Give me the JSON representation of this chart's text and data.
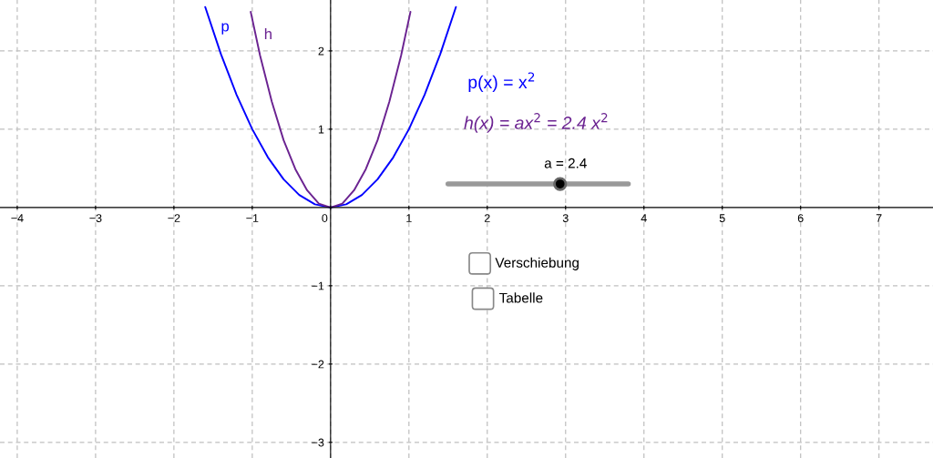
{
  "chart_data": {
    "type": "line",
    "series": [
      {
        "name": "p",
        "color": "#0000ff",
        "x": [
          -1.6,
          -1.4,
          -1.2,
          -1.0,
          -0.8,
          -0.6,
          -0.4,
          -0.2,
          0,
          0.2,
          0.4,
          0.6,
          0.8,
          1.0,
          1.2,
          1.4,
          1.6
        ],
        "values": [
          2.56,
          1.96,
          1.44,
          1.0,
          0.64,
          0.36,
          0.16,
          0.04,
          0,
          0.04,
          0.16,
          0.36,
          0.64,
          1.0,
          1.44,
          1.96,
          2.56
        ]
      },
      {
        "name": "h",
        "color": "#6b2391",
        "x": [
          -1.02,
          -0.9,
          -0.75,
          -0.6,
          -0.45,
          -0.3,
          -0.15,
          0,
          0.15,
          0.3,
          0.45,
          0.6,
          0.75,
          0.9,
          1.02
        ],
        "values": [
          2.5,
          1.94,
          1.35,
          0.86,
          0.49,
          0.22,
          0.05,
          0,
          0.05,
          0.22,
          0.49,
          0.86,
          1.35,
          1.94,
          2.5
        ]
      }
    ],
    "annotations": [
      "p(x) = x$^{2}$",
      "h(x) = ax$^{2}$ = 2.4 x$^{2}$",
      "a = 2.4",
      "Verschiebung",
      "Tabelle"
    ],
    "xlim": [
      -4.22,
      7.69
    ],
    "ylim": [
      -3.2,
      2.65
    ],
    "xticks": [
      {
        "value": -4,
        "label": "−4"
      },
      {
        "value": -3,
        "label": "−3"
      },
      {
        "value": -2,
        "label": "−2"
      },
      {
        "value": -1,
        "label": "−1"
      },
      0,
      1,
      2,
      3,
      4,
      5,
      6,
      7
    ],
    "yticks": [
      {
        "value": -3,
        "label": "−3"
      },
      {
        "value": -2,
        "label": "−2"
      },
      {
        "value": -1,
        "label": "−1"
      },
      1,
      2
    ],
    "grid": true,
    "line_style": "solid"
  }
}
